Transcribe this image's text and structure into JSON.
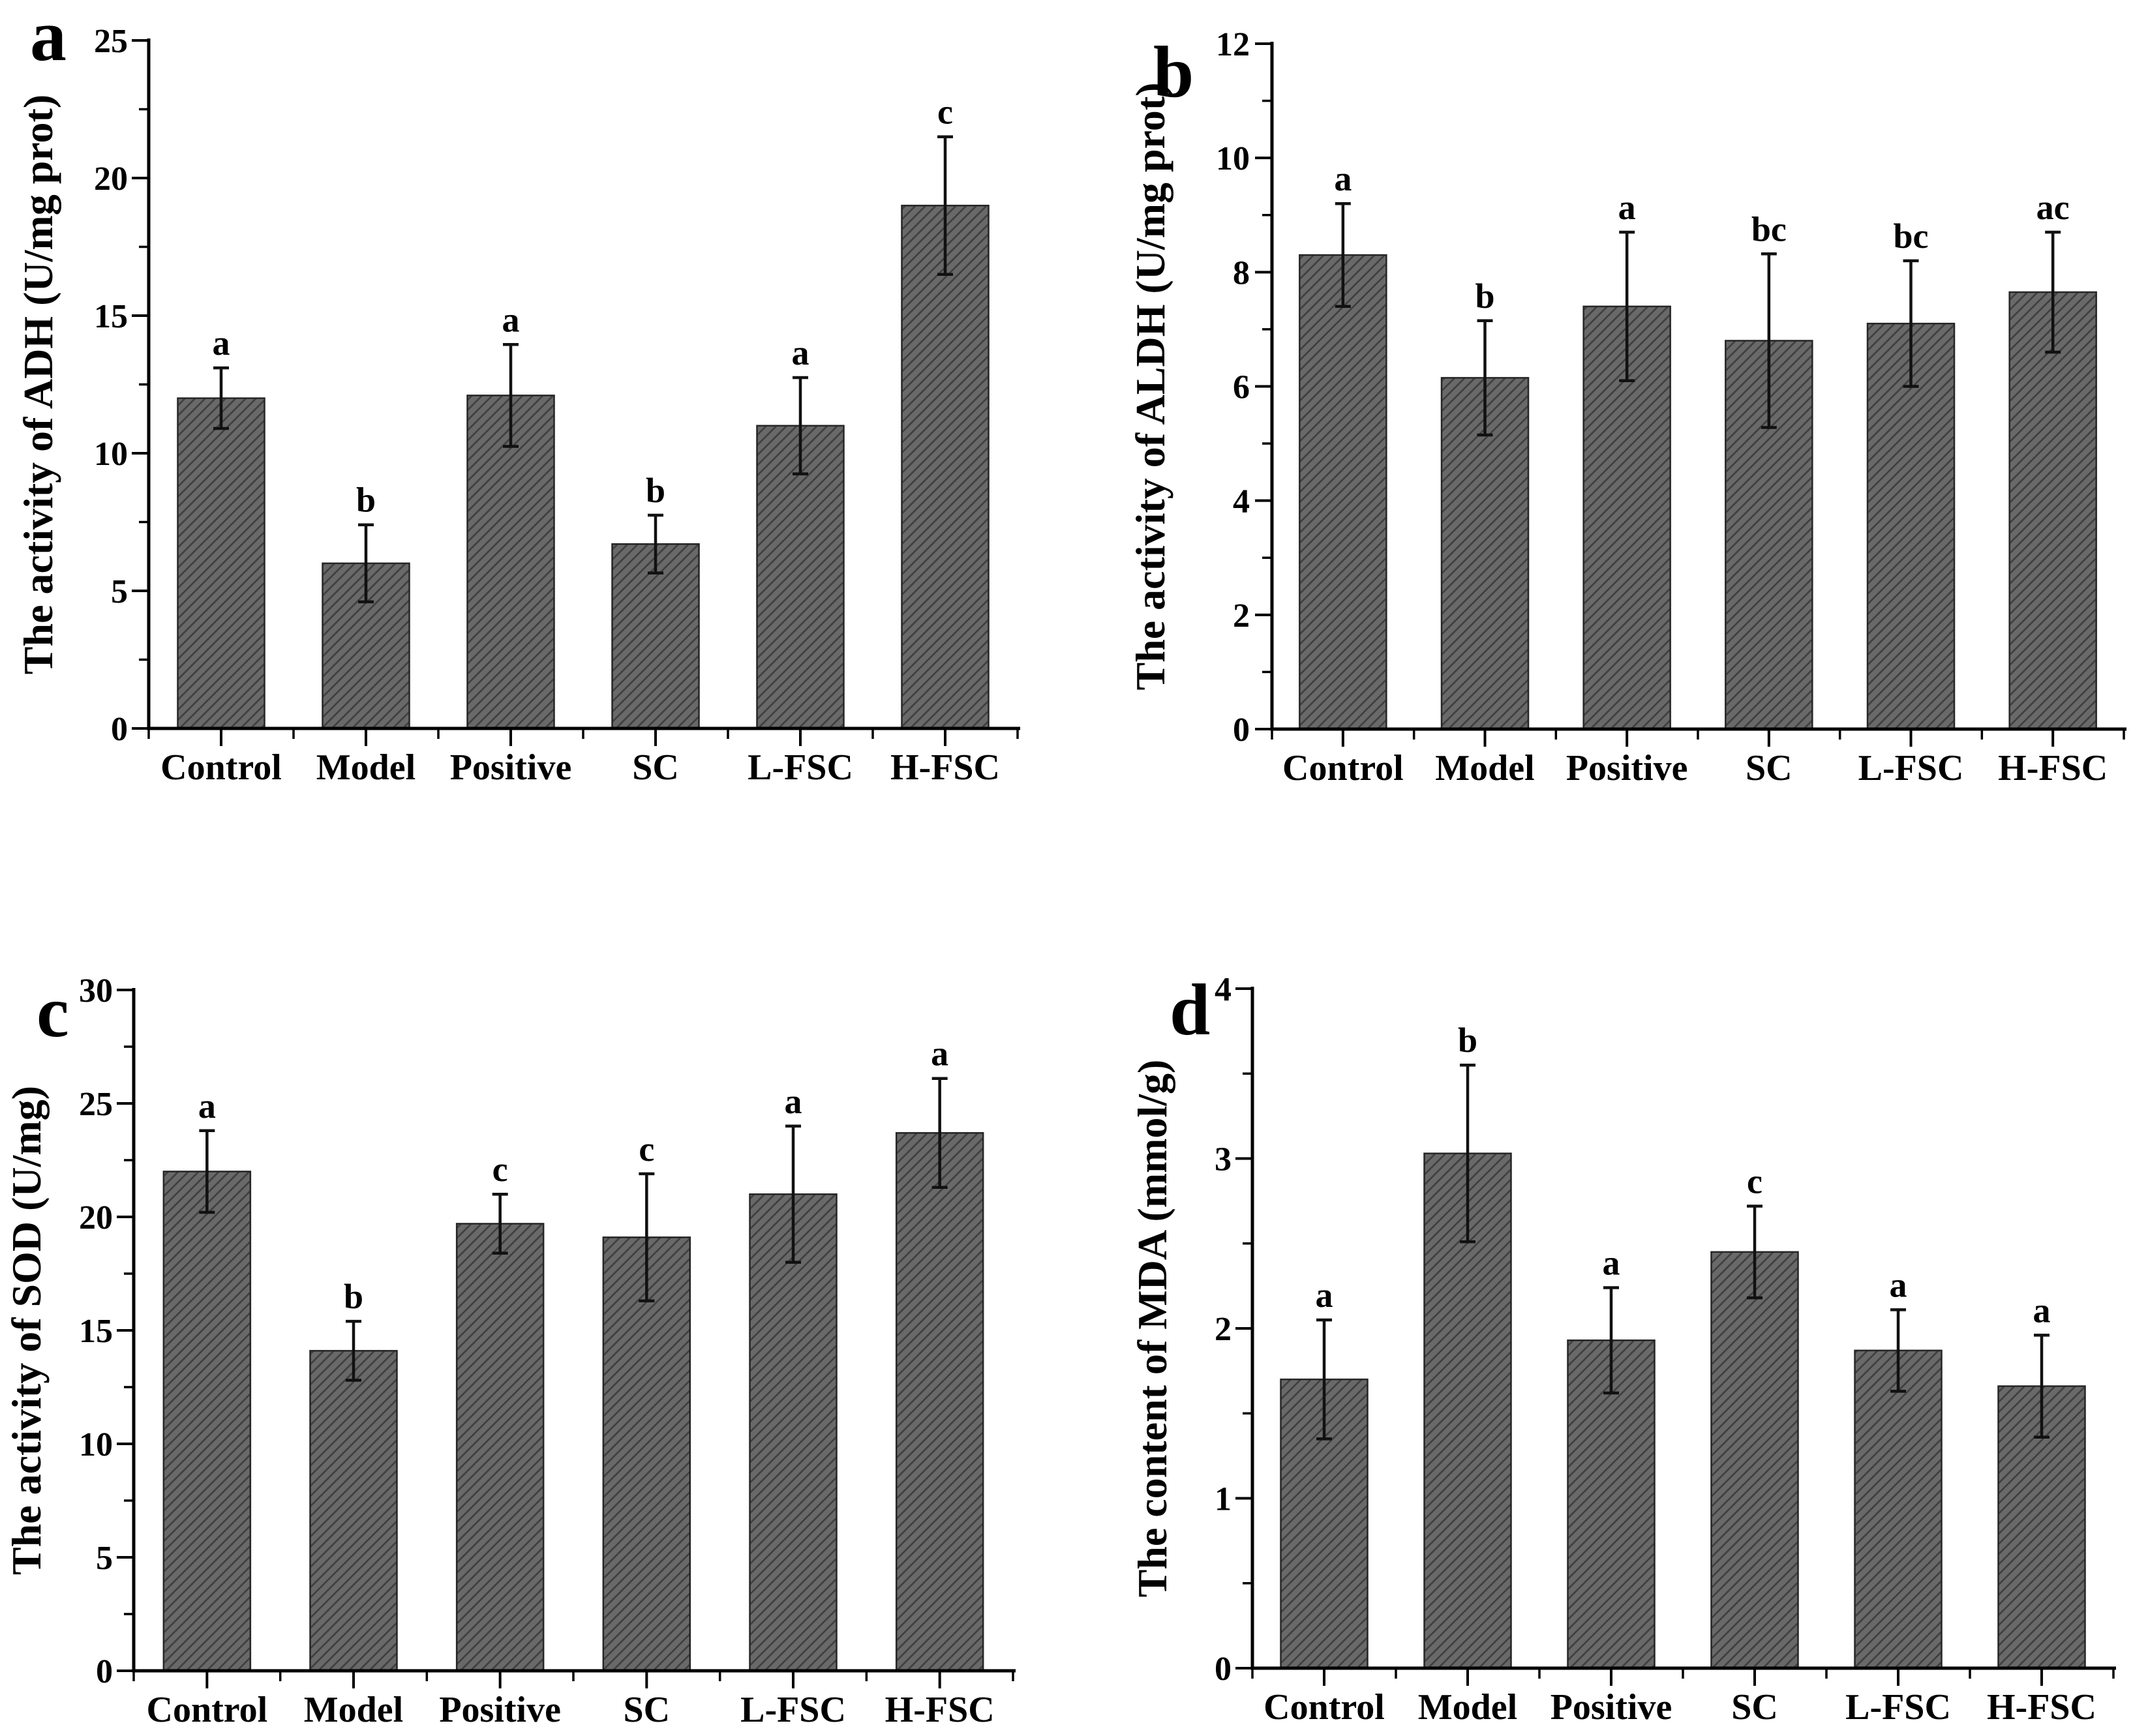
{
  "figure": {
    "background": "#ffffff",
    "style": {
      "bar_fill": "#696969",
      "bar_hatch_line": "#3e3e3e",
      "bar_stroke": "#262626",
      "axis_color": "#000000",
      "error_bar_color": "#111111",
      "text_color": "#000000"
    }
  },
  "chart_data": [
    {
      "panel": "a",
      "type": "bar",
      "title": "",
      "xlabel": "",
      "ylabel": "The activity of ADH (U/mg prot)",
      "ylim": [
        0,
        25
      ],
      "ytick_major": 5,
      "ytick_minor": 2.5,
      "ytick_labels": [
        "0",
        "5",
        "10",
        "15",
        "20",
        "25"
      ],
      "grid": false,
      "legend_position": "none",
      "categories": [
        "Control",
        "Model",
        "Positive",
        "SC",
        "L-FSC",
        "H-FSC"
      ],
      "values": [
        12.0,
        6.0,
        12.1,
        6.7,
        11.0,
        19.0
      ],
      "errors": [
        1.1,
        1.4,
        1.85,
        1.05,
        1.75,
        2.5
      ],
      "sig_labels": [
        "a",
        "b",
        "a",
        "b",
        "a",
        "c"
      ]
    },
    {
      "panel": "b",
      "type": "bar",
      "title": "",
      "xlabel": "",
      "ylabel": "The activity of ALDH (U/mg prot)",
      "ylim": [
        0,
        12
      ],
      "ytick_major": 2,
      "ytick_minor": 1,
      "ytick_labels": [
        "0",
        "2",
        "4",
        "6",
        "8",
        "10",
        "12"
      ],
      "grid": false,
      "legend_position": "none",
      "categories": [
        "Control",
        "Model",
        "Positive",
        "SC",
        "L-FSC",
        "H-FSC"
      ],
      "values": [
        8.3,
        6.15,
        7.4,
        6.8,
        7.1,
        7.65
      ],
      "errors": [
        0.9,
        1.0,
        1.3,
        1.52,
        1.1,
        1.05
      ],
      "sig_labels": [
        "a",
        "b",
        "a",
        "bc",
        "bc",
        "ac"
      ]
    },
    {
      "panel": "c",
      "type": "bar",
      "title": "",
      "xlabel": "",
      "ylabel": "The activity of SOD (U/mg)",
      "ylim": [
        0,
        30
      ],
      "ytick_major": 5,
      "ytick_minor": 2.5,
      "ytick_labels": [
        "0",
        "5",
        "10",
        "15",
        "20",
        "25",
        "30"
      ],
      "grid": false,
      "legend_position": "none",
      "categories": [
        "Control",
        "Model",
        "Positive",
        "SC",
        "L-FSC",
        "H-FSC"
      ],
      "values": [
        22.0,
        14.1,
        19.7,
        19.1,
        21.0,
        23.7
      ],
      "errors": [
        1.8,
        1.3,
        1.3,
        2.8,
        3.0,
        2.4
      ],
      "sig_labels": [
        "a",
        "b",
        "c",
        "c",
        "a",
        "a"
      ]
    },
    {
      "panel": "d",
      "type": "bar",
      "title": "",
      "xlabel": "",
      "ylabel": "The content of MDA (mmol/g)",
      "ylim": [
        0,
        4
      ],
      "ytick_major": 1,
      "ytick_minor": 0.5,
      "ytick_labels": [
        "0",
        "1",
        "2",
        "3",
        "4"
      ],
      "grid": false,
      "legend_position": "none",
      "categories": [
        "Control",
        "Model",
        "Positive",
        "SC",
        "L-FSC",
        "H-FSC"
      ],
      "values": [
        1.7,
        3.03,
        1.93,
        2.45,
        1.87,
        1.66
      ],
      "errors": [
        0.35,
        0.52,
        0.31,
        0.27,
        0.24,
        0.3
      ],
      "sig_labels": [
        "a",
        "b",
        "a",
        "c",
        "a",
        "a"
      ]
    }
  ]
}
